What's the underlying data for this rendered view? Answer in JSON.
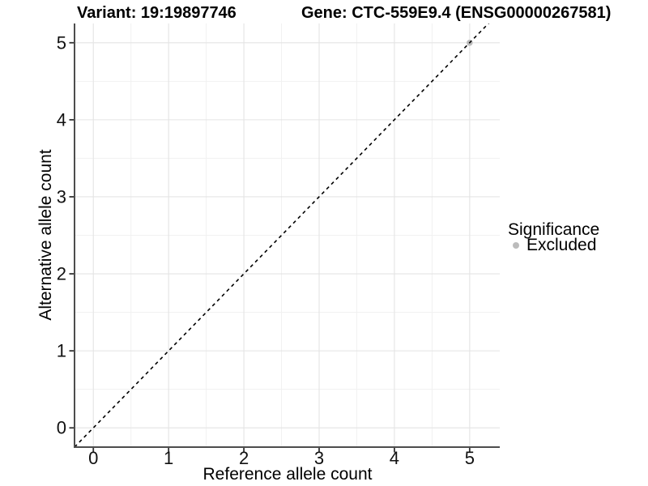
{
  "chart_data": {
    "type": "scatter",
    "titles": [
      "Variant: 19:19897746",
      "Gene: CTC-559E9.4 (ENSG00000267581)"
    ],
    "xlabel": "Reference allele count",
    "ylabel": "Alternative allele count",
    "xlim": [
      -0.25,
      5.4
    ],
    "ylim": [
      -0.25,
      5.25
    ],
    "x_ticks": [
      0,
      1,
      2,
      3,
      4,
      5
    ],
    "y_ticks": [
      0,
      1,
      2,
      3,
      4,
      5
    ],
    "minor_grid_step": 0.5,
    "grid": true,
    "reference_line": {
      "slope": 1,
      "intercept": 0,
      "style": "dashed",
      "color": "#000000"
    },
    "series": [
      {
        "name": "Excluded",
        "color": "#bcbcbc",
        "points": [
          {
            "x": 5,
            "y": 5
          }
        ]
      }
    ],
    "legend": {
      "title": "Significance",
      "position": "right",
      "entries": [
        {
          "label": "Excluded",
          "color": "#bcbcbc"
        }
      ]
    },
    "style": {
      "background": "#ffffff",
      "grid_major": "#e4e4e4",
      "grid_minor": "#f1f1f1",
      "axis_line": "#4d4d4d",
      "tick_mark": "#333333",
      "tick_text": "#111111"
    }
  }
}
